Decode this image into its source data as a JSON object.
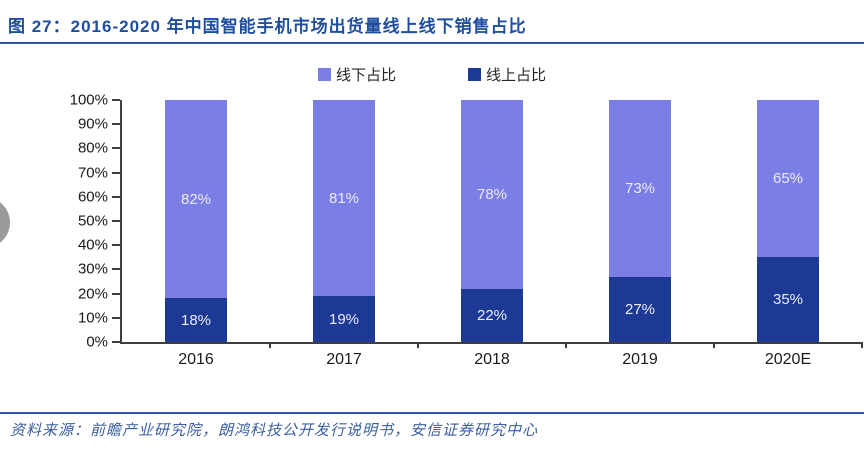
{
  "page": {
    "title": "图 27：2016-2020 年中国智能手机市场出货量线上线下销售占比",
    "source": "资料来源：前瞻产业研究院，朗鸿科技公开发行说明书，安信证券研究中心"
  },
  "colors": {
    "title_text": "#1F4E9E",
    "rule": "#2D5AA2",
    "source_text": "#3A5F9E",
    "axis": "#3F3F3F",
    "offline_bar": "#7B7EE5",
    "online_bar": "#1C3A94",
    "bar_label": "#EDEBFA",
    "nav_circle": "#9A9A9A"
  },
  "chart_data": {
    "type": "bar",
    "stacked": true,
    "title": "2016-2020 年中国智能手机市场出货量线上线下销售占比",
    "categories": [
      "2016",
      "2017",
      "2018",
      "2019",
      "2020E"
    ],
    "series": [
      {
        "key": "offline",
        "name": "线下占比",
        "color": "#7B7EE5",
        "values": [
          82,
          81,
          78,
          73,
          65
        ]
      },
      {
        "key": "online",
        "name": "线上占比",
        "color": "#1C3A94",
        "values": [
          18,
          19,
          22,
          27,
          35
        ]
      }
    ],
    "y_ticks": [
      "0%",
      "10%",
      "20%",
      "30%",
      "40%",
      "50%",
      "60%",
      "70%",
      "80%",
      "90%",
      "100%"
    ],
    "ylim": [
      0,
      100
    ],
    "value_suffix": "%",
    "legend_position": "top",
    "grid": false,
    "xlabel": "",
    "ylabel": ""
  }
}
